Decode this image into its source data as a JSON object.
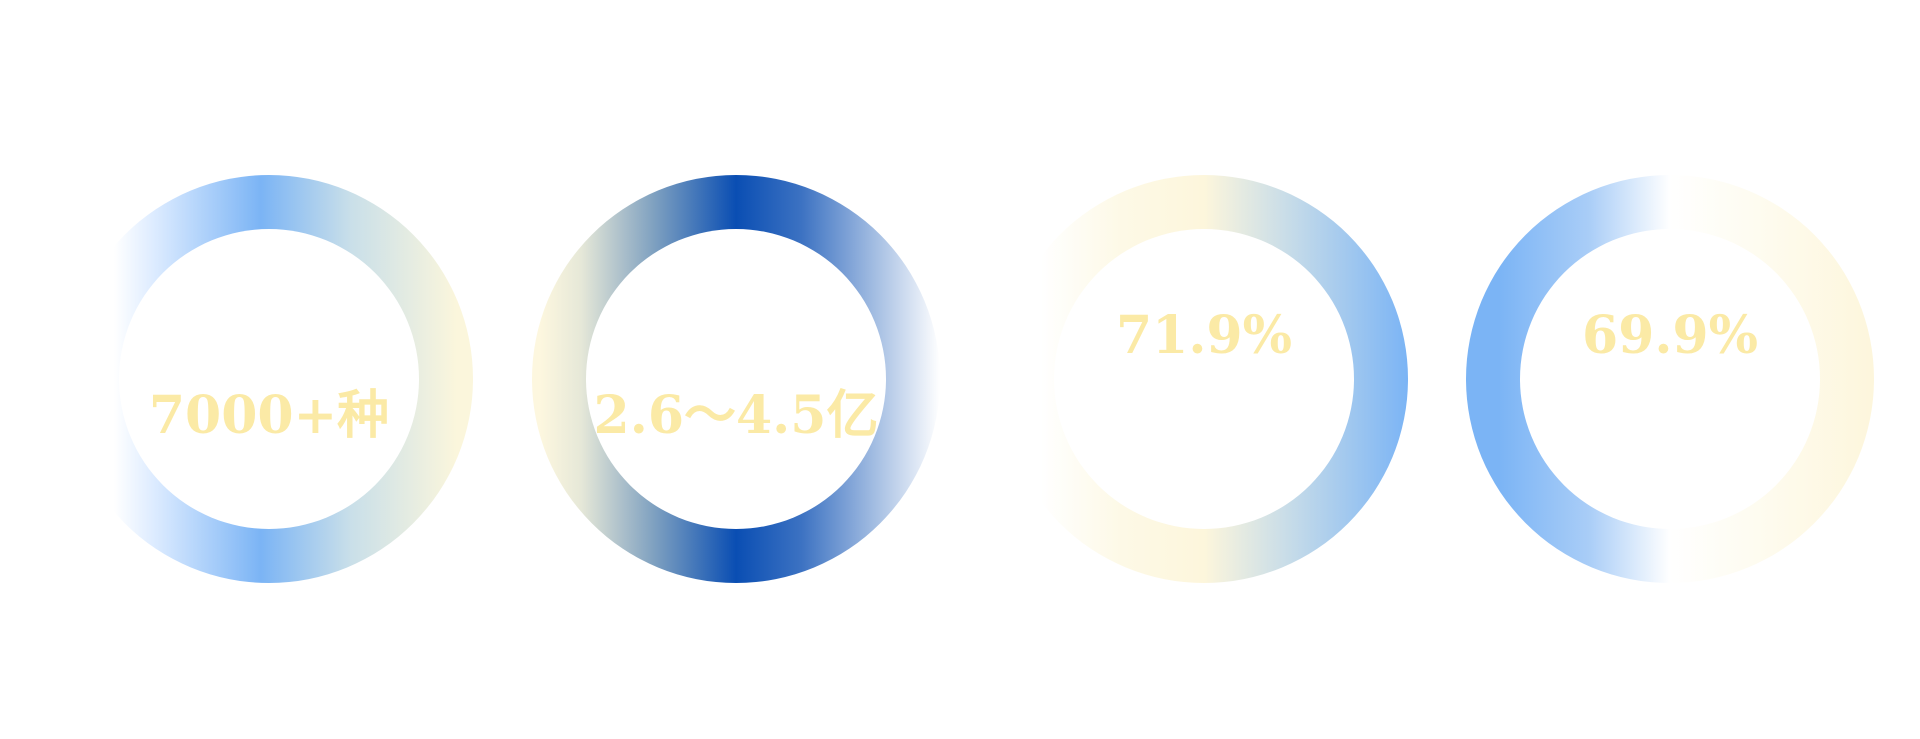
{
  "colors": {
    "value_text": "#fbeaa6",
    "ring_blue_light": "#7bb4f5",
    "ring_blue_dark": "#0a4eb3",
    "ring_cream": "#fdf6dc",
    "background": "#ffffff"
  },
  "stats": [
    {
      "value": "7000+种"
    },
    {
      "value": "2.6～4.5亿"
    },
    {
      "value": "71.9%"
    },
    {
      "value": "69.9%"
    }
  ]
}
